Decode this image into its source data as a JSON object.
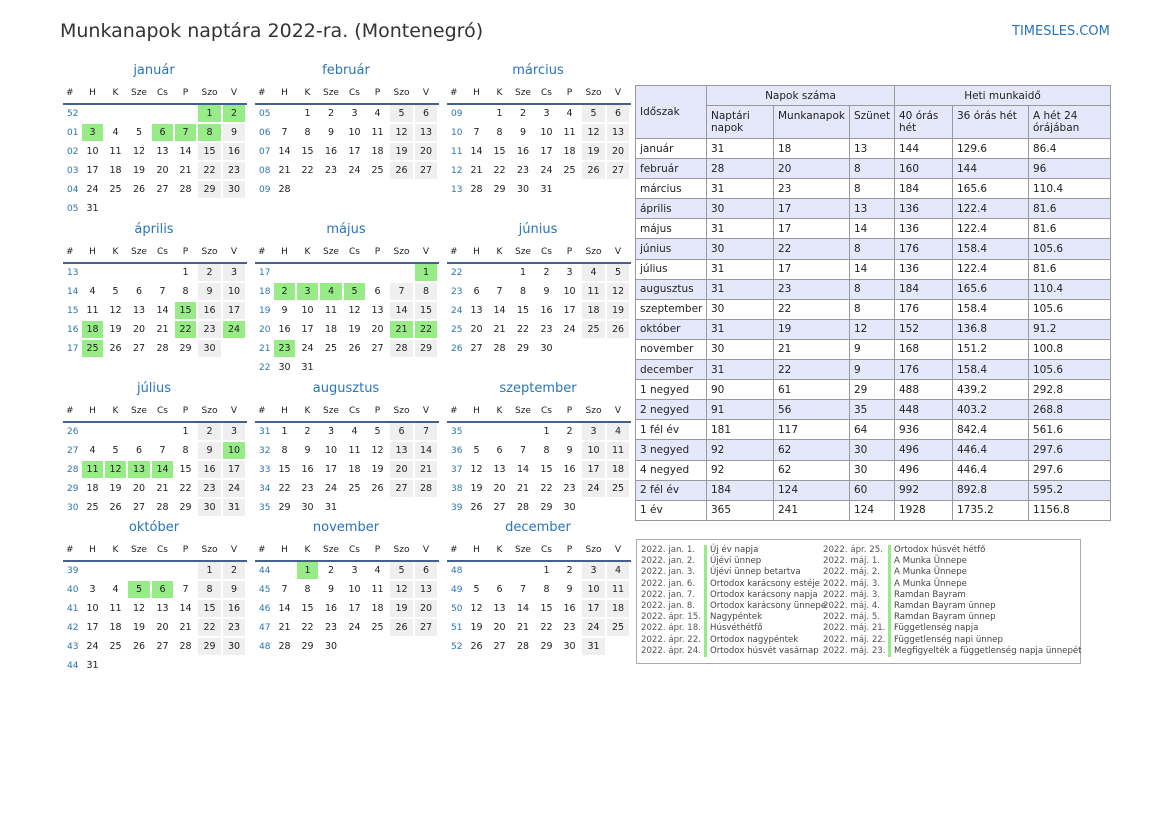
{
  "header": {
    "title": "Munkanapok naptára 2022-ra. (Montenegró)",
    "brand": "TIMESLES.COM"
  },
  "weekday_headers": [
    "#",
    "H",
    "K",
    "Sze",
    "Cs",
    "P",
    "Szo",
    "V"
  ],
  "months": [
    {
      "name": "január",
      "weeks": [
        [
          "52",
          "",
          "",
          "",
          "",
          "",
          "1",
          "2"
        ],
        [
          "01",
          "3",
          "4",
          "5",
          "6",
          "7",
          "8",
          "9"
        ],
        [
          "02",
          "10",
          "11",
          "12",
          "13",
          "14",
          "15",
          "16"
        ],
        [
          "03",
          "17",
          "18",
          "19",
          "20",
          "21",
          "22",
          "23"
        ],
        [
          "04",
          "24",
          "25",
          "26",
          "27",
          "28",
          "29",
          "30"
        ],
        [
          "05",
          "31",
          "",
          "",
          "",
          "",
          "",
          ""
        ]
      ],
      "holidays": [
        "1",
        "2",
        "3",
        "6",
        "7",
        "8"
      ]
    },
    {
      "name": "február",
      "weeks": [
        [
          "05",
          "",
          "1",
          "2",
          "3",
          "4",
          "5",
          "6"
        ],
        [
          "06",
          "7",
          "8",
          "9",
          "10",
          "11",
          "12",
          "13"
        ],
        [
          "07",
          "14",
          "15",
          "16",
          "17",
          "18",
          "19",
          "20"
        ],
        [
          "08",
          "21",
          "22",
          "23",
          "24",
          "25",
          "26",
          "27"
        ],
        [
          "09",
          "28",
          "",
          "",
          "",
          "",
          "",
          ""
        ]
      ],
      "holidays": []
    },
    {
      "name": "március",
      "weeks": [
        [
          "09",
          "",
          "1",
          "2",
          "3",
          "4",
          "5",
          "6"
        ],
        [
          "10",
          "7",
          "8",
          "9",
          "10",
          "11",
          "12",
          "13"
        ],
        [
          "11",
          "14",
          "15",
          "16",
          "17",
          "18",
          "19",
          "20"
        ],
        [
          "12",
          "21",
          "22",
          "23",
          "24",
          "25",
          "26",
          "27"
        ],
        [
          "13",
          "28",
          "29",
          "30",
          "31",
          "",
          "",
          ""
        ]
      ],
      "holidays": []
    },
    {
      "name": "április",
      "weeks": [
        [
          "13",
          "",
          "",
          "",
          "",
          "1",
          "2",
          "3"
        ],
        [
          "14",
          "4",
          "5",
          "6",
          "7",
          "8",
          "9",
          "10"
        ],
        [
          "15",
          "11",
          "12",
          "13",
          "14",
          "15",
          "16",
          "17"
        ],
        [
          "16",
          "18",
          "19",
          "20",
          "21",
          "22",
          "23",
          "24"
        ],
        [
          "17",
          "25",
          "26",
          "27",
          "28",
          "29",
          "30",
          ""
        ]
      ],
      "holidays": [
        "15",
        "18",
        "22",
        "24",
        "25"
      ]
    },
    {
      "name": "május",
      "weeks": [
        [
          "17",
          "",
          "",
          "",
          "",
          "",
          "",
          "1"
        ],
        [
          "18",
          "2",
          "3",
          "4",
          "5",
          "6",
          "7",
          "8"
        ],
        [
          "19",
          "9",
          "10",
          "11",
          "12",
          "13",
          "14",
          "15"
        ],
        [
          "20",
          "16",
          "17",
          "18",
          "19",
          "20",
          "21",
          "22"
        ],
        [
          "21",
          "23",
          "24",
          "25",
          "26",
          "27",
          "28",
          "29"
        ],
        [
          "22",
          "30",
          "31",
          "",
          "",
          "",
          "",
          ""
        ]
      ],
      "holidays": [
        "1",
        "2",
        "3",
        "4",
        "5",
        "21",
        "22",
        "23"
      ]
    },
    {
      "name": "június",
      "weeks": [
        [
          "22",
          "",
          "",
          "1",
          "2",
          "3",
          "4",
          "5"
        ],
        [
          "23",
          "6",
          "7",
          "8",
          "9",
          "10",
          "11",
          "12"
        ],
        [
          "24",
          "13",
          "14",
          "15",
          "16",
          "17",
          "18",
          "19"
        ],
        [
          "25",
          "20",
          "21",
          "22",
          "23",
          "24",
          "25",
          "26"
        ],
        [
          "26",
          "27",
          "28",
          "29",
          "30",
          "",
          "",
          ""
        ]
      ],
      "holidays": []
    },
    {
      "name": "július",
      "weeks": [
        [
          "26",
          "",
          "",
          "",
          "",
          "1",
          "2",
          "3"
        ],
        [
          "27",
          "4",
          "5",
          "6",
          "7",
          "8",
          "9",
          "10"
        ],
        [
          "28",
          "11",
          "12",
          "13",
          "14",
          "15",
          "16",
          "17"
        ],
        [
          "29",
          "18",
          "19",
          "20",
          "21",
          "22",
          "23",
          "24"
        ],
        [
          "30",
          "25",
          "26",
          "27",
          "28",
          "29",
          "30",
          "31"
        ]
      ],
      "holidays": [
        "10",
        "11",
        "12",
        "13",
        "14"
      ]
    },
    {
      "name": "augusztus",
      "weeks": [
        [
          "31",
          "1",
          "2",
          "3",
          "4",
          "5",
          "6",
          "7"
        ],
        [
          "32",
          "8",
          "9",
          "10",
          "11",
          "12",
          "13",
          "14"
        ],
        [
          "33",
          "15",
          "16",
          "17",
          "18",
          "19",
          "20",
          "21"
        ],
        [
          "34",
          "22",
          "23",
          "24",
          "25",
          "26",
          "27",
          "28"
        ],
        [
          "35",
          "29",
          "30",
          "31",
          "",
          "",
          "",
          ""
        ]
      ],
      "holidays": []
    },
    {
      "name": "szeptember",
      "weeks": [
        [
          "35",
          "",
          "",
          "",
          "1",
          "2",
          "3",
          "4"
        ],
        [
          "36",
          "5",
          "6",
          "7",
          "8",
          "9",
          "10",
          "11"
        ],
        [
          "37",
          "12",
          "13",
          "14",
          "15",
          "16",
          "17",
          "18"
        ],
        [
          "38",
          "19",
          "20",
          "21",
          "22",
          "23",
          "24",
          "25"
        ],
        [
          "39",
          "26",
          "27",
          "28",
          "29",
          "30",
          "",
          ""
        ]
      ],
      "holidays": []
    },
    {
      "name": "október",
      "weeks": [
        [
          "39",
          "",
          "",
          "",
          "",
          "",
          "1",
          "2"
        ],
        [
          "40",
          "3",
          "4",
          "5",
          "6",
          "7",
          "8",
          "9"
        ],
        [
          "41",
          "10",
          "11",
          "12",
          "13",
          "14",
          "15",
          "16"
        ],
        [
          "42",
          "17",
          "18",
          "19",
          "20",
          "21",
          "22",
          "23"
        ],
        [
          "43",
          "24",
          "25",
          "26",
          "27",
          "28",
          "29",
          "30"
        ],
        [
          "44",
          "31",
          "",
          "",
          "",
          "",
          "",
          ""
        ]
      ],
      "holidays": [
        "5",
        "6"
      ]
    },
    {
      "name": "november",
      "weeks": [
        [
          "44",
          "",
          "1",
          "2",
          "3",
          "4",
          "5",
          "6"
        ],
        [
          "45",
          "7",
          "8",
          "9",
          "10",
          "11",
          "12",
          "13"
        ],
        [
          "46",
          "14",
          "15",
          "16",
          "17",
          "18",
          "19",
          "20"
        ],
        [
          "47",
          "21",
          "22",
          "23",
          "24",
          "25",
          "26",
          "27"
        ],
        [
          "48",
          "28",
          "29",
          "30",
          "",
          "",
          "",
          ""
        ]
      ],
      "holidays": [
        "1"
      ]
    },
    {
      "name": "december",
      "weeks": [
        [
          "48",
          "",
          "",
          "",
          "1",
          "2",
          "3",
          "4"
        ],
        [
          "49",
          "5",
          "6",
          "7",
          "8",
          "9",
          "10",
          "11"
        ],
        [
          "50",
          "12",
          "13",
          "14",
          "15",
          "16",
          "17",
          "18"
        ],
        [
          "51",
          "19",
          "20",
          "21",
          "22",
          "23",
          "24",
          "25"
        ],
        [
          "52",
          "26",
          "27",
          "28",
          "29",
          "30",
          "31",
          ""
        ]
      ],
      "holidays": []
    }
  ],
  "stats": {
    "col_period": "Időszak",
    "group_days": "Napok száma",
    "group_hours": "Heti munkaidő",
    "headers": [
      "Naptári napok",
      "Munkanapok",
      "Szünet",
      "40 órás hét",
      "36 órás hét",
      "A hét 24 órájában"
    ],
    "rows": [
      [
        "január",
        "31",
        "18",
        "13",
        "144",
        "129.6",
        "86.4"
      ],
      [
        "február",
        "28",
        "20",
        "8",
        "160",
        "144",
        "96"
      ],
      [
        "március",
        "31",
        "23",
        "8",
        "184",
        "165.6",
        "110.4"
      ],
      [
        "április",
        "30",
        "17",
        "13",
        "136",
        "122.4",
        "81.6"
      ],
      [
        "május",
        "31",
        "17",
        "14",
        "136",
        "122.4",
        "81.6"
      ],
      [
        "június",
        "30",
        "22",
        "8",
        "176",
        "158.4",
        "105.6"
      ],
      [
        "július",
        "31",
        "17",
        "14",
        "136",
        "122.4",
        "81.6"
      ],
      [
        "augusztus",
        "31",
        "23",
        "8",
        "184",
        "165.6",
        "110.4"
      ],
      [
        "szeptember",
        "30",
        "22",
        "8",
        "176",
        "158.4",
        "105.6"
      ],
      [
        "október",
        "31",
        "19",
        "12",
        "152",
        "136.8",
        "91.2"
      ],
      [
        "november",
        "30",
        "21",
        "9",
        "168",
        "151.2",
        "100.8"
      ],
      [
        "december",
        "31",
        "22",
        "9",
        "176",
        "158.4",
        "105.6"
      ],
      [
        "1 negyed",
        "90",
        "61",
        "29",
        "488",
        "439.2",
        "292.8"
      ],
      [
        "2 negyed",
        "91",
        "56",
        "35",
        "448",
        "403.2",
        "268.8"
      ],
      [
        "1 fél év",
        "181",
        "117",
        "64",
        "936",
        "842.4",
        "561.6"
      ],
      [
        "3 negyed",
        "92",
        "62",
        "30",
        "496",
        "446.4",
        "297.6"
      ],
      [
        "4 negyed",
        "92",
        "62",
        "30",
        "496",
        "446.4",
        "297.6"
      ],
      [
        "2 fél év",
        "184",
        "124",
        "60",
        "992",
        "892.8",
        "595.2"
      ],
      [
        "1 év",
        "365",
        "241",
        "124",
        "1928",
        "1735.2",
        "1156.8"
      ]
    ]
  },
  "holidays": [
    [
      "2022. jan. 1.",
      "Új év napja"
    ],
    [
      "2022. jan. 2.",
      "Újévi ünnep"
    ],
    [
      "2022. jan. 3.",
      "Újévi ünnep betartva"
    ],
    [
      "2022. jan. 6.",
      "Ortodox karácsony estéje"
    ],
    [
      "2022. jan. 7.",
      "Ortodox karácsony napja"
    ],
    [
      "2022. jan. 8.",
      "Ortodox karácsony ünnepe"
    ],
    [
      "2022. ápr. 15.",
      "Nagypéntek"
    ],
    [
      "2022. ápr. 18.",
      "Húsvéthétfő"
    ],
    [
      "2022. ápr. 22.",
      "Ortodox nagypéntek"
    ],
    [
      "2022. ápr. 24.",
      "Ortodox húsvét vasárnap"
    ],
    [
      "2022. ápr. 25.",
      "Ortodox húsvét hétfő"
    ],
    [
      "2022. máj. 1.",
      "A Munka Ünnepe"
    ],
    [
      "2022. máj. 2.",
      "A Munka Ünnepe"
    ],
    [
      "2022. máj. 3.",
      "A Munka Ünnepe"
    ],
    [
      "2022. máj. 3.",
      "Ramdan Bayram"
    ],
    [
      "2022. máj. 4.",
      "Ramdan Bayram ünnep"
    ],
    [
      "2022. máj. 5.",
      "Ramdan Bayram ünnep"
    ],
    [
      "2022. máj. 21.",
      "Függetlenség napja"
    ],
    [
      "2022. máj. 22.",
      "Függetlenség napi ünnep"
    ],
    [
      "2022. máj. 23.",
      "Megfigyelték a függetlenség napja ünnepét"
    ]
  ],
  "colors": {
    "accent": "#2a74b8",
    "holiday": "#98ec88",
    "weekend": "#efefef",
    "header_rule": "#44608e",
    "table_header": "#e5e8fb"
  }
}
